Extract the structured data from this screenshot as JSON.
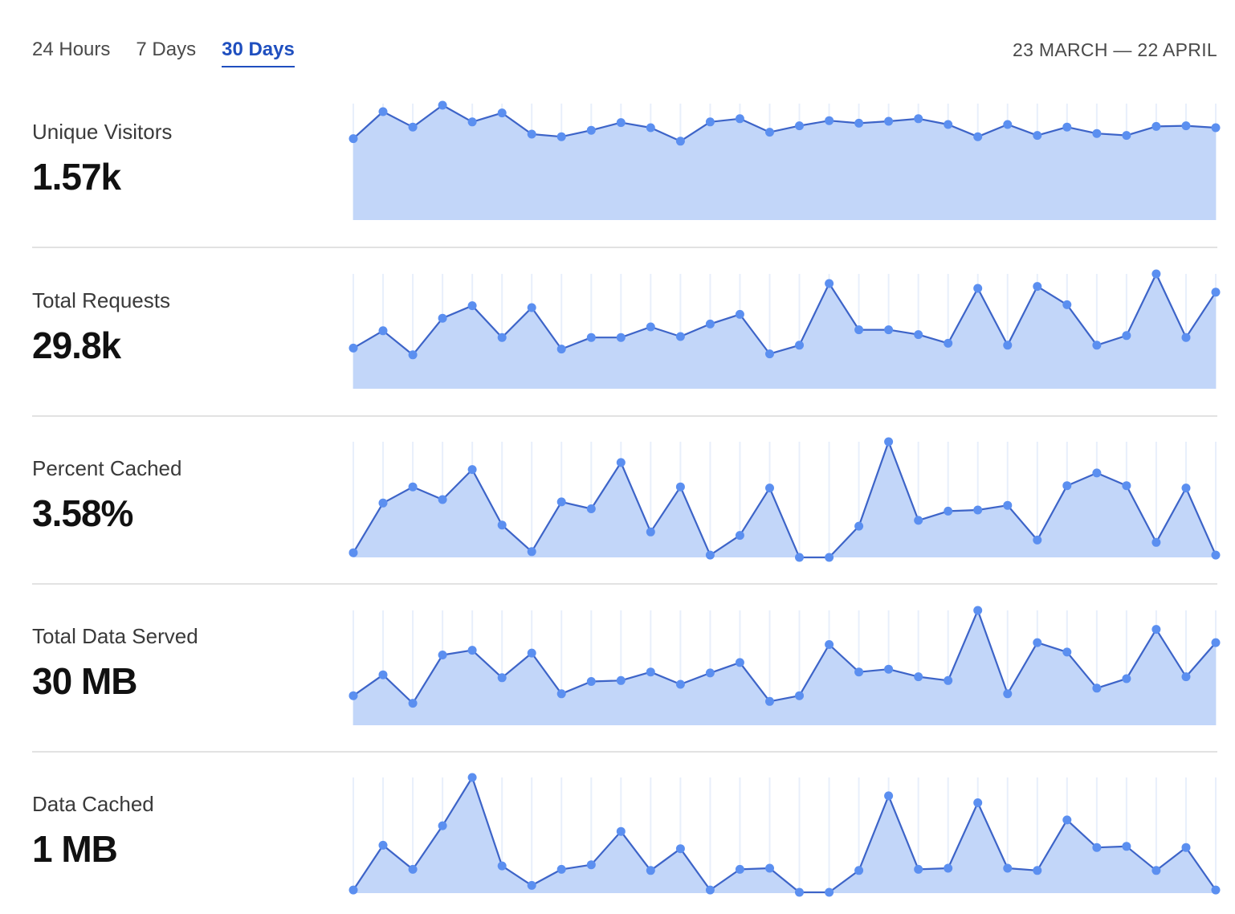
{
  "tabs": [
    {
      "label": "24 Hours",
      "active": false
    },
    {
      "label": "7 Days",
      "active": false
    },
    {
      "label": "30 Days",
      "active": true
    }
  ],
  "date_range": "23 MARCH — 22 APRIL",
  "colors": {
    "line": "#3d64c8",
    "dot": "#5b8ff0",
    "fill": "#c2d6f9",
    "gridline": "#e8effb",
    "active_tab": "#1f4fbf",
    "divider": "#e2e2e2"
  },
  "metrics": [
    {
      "label": "Unique Visitors",
      "value": "1.57k"
    },
    {
      "label": "Total Requests",
      "value": "29.8k"
    },
    {
      "label": "Percent Cached",
      "value": "3.58%"
    },
    {
      "label": "Total Data Served",
      "value": "30 MB"
    },
    {
      "label": "Data Cached",
      "value": "1 MB"
    }
  ],
  "chart_data": [
    {
      "type": "area",
      "title": "",
      "ylim": [
        0,
        100
      ],
      "values": [
        48,
        90,
        66,
        100,
        74,
        88,
        55,
        51,
        61,
        73,
        65,
        44,
        74,
        79,
        58,
        68,
        76,
        72,
        75,
        79,
        70,
        51,
        70,
        53,
        66,
        56,
        53,
        67,
        68,
        65
      ]
    },
    {
      "type": "area",
      "title": "",
      "ylim": [
        0,
        100
      ],
      "values": [
        23,
        41,
        16,
        54,
        67,
        34,
        65,
        22,
        34,
        34,
        45,
        35,
        48,
        58,
        17,
        26,
        90,
        42,
        42,
        37,
        28,
        85,
        26,
        87,
        68,
        26,
        36,
        100,
        34,
        81
      ]
    },
    {
      "type": "area",
      "title": "",
      "ylim": [
        0,
        100
      ],
      "values": [
        4,
        47,
        61,
        50,
        76,
        28,
        5,
        48,
        42,
        82,
        22,
        61,
        2,
        19,
        60,
        0,
        0,
        27,
        100,
        32,
        40,
        41,
        45,
        15,
        62,
        73,
        62,
        13,
        60,
        2
      ]
    },
    {
      "type": "area",
      "title": "",
      "ylim": [
        0,
        100
      ],
      "values": [
        10,
        32,
        2,
        53,
        58,
        29,
        55,
        12,
        25,
        26,
        35,
        22,
        34,
        45,
        4,
        10,
        64,
        35,
        38,
        30,
        26,
        100,
        12,
        66,
        56,
        18,
        28,
        80,
        30,
        66
      ]
    },
    {
      "type": "area",
      "title": "",
      "ylim": [
        0,
        100
      ],
      "values": [
        2,
        41,
        20,
        58,
        100,
        23,
        6,
        20,
        24,
        53,
        19,
        38,
        2,
        20,
        21,
        0,
        0,
        19,
        84,
        20,
        21,
        78,
        21,
        19,
        63,
        39,
        40,
        19,
        39,
        2
      ]
    }
  ]
}
